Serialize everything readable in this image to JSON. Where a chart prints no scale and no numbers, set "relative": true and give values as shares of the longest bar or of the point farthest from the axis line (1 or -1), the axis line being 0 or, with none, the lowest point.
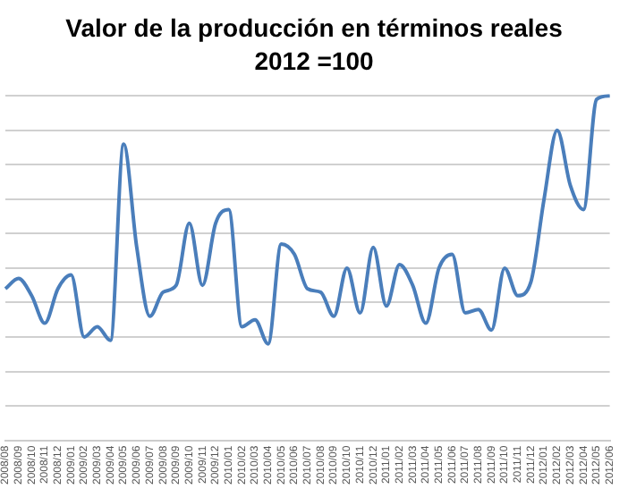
{
  "chart_data": {
    "type": "line",
    "title": "Valor de la producción en términos reales",
    "subtitle": "2012 =100",
    "relative": true,
    "grid": "y",
    "marker": "none",
    "line_style": "solid",
    "categories": [
      "2008/08",
      "2008/09",
      "2008/10",
      "2008/11",
      "2008/12",
      "2009/01",
      "2009/02",
      "2009/03",
      "2009/04",
      "2009/05",
      "2009/06",
      "2009/07",
      "2009/08",
      "2009/09",
      "2009/10",
      "2009/11",
      "2009/12",
      "2010/01",
      "2010/02",
      "2010/03",
      "2010/04",
      "2010/05",
      "2010/06",
      "2010/07",
      "2010/08",
      "2010/09",
      "2010/10",
      "2010/11",
      "2010/12",
      "2011/01",
      "2011/02",
      "2011/03",
      "2011/04",
      "2011/05",
      "2011/06",
      "2011/07",
      "2011/08",
      "2011/09",
      "2011/10",
      "2011/11",
      "2011/12",
      "2012/01",
      "2012/02",
      "2012/03",
      "2012/04",
      "2012/05",
      "2012/06"
    ],
    "series": [
      {
        "color": "#4a7ebb",
        "values": [
          0.44,
          0.47,
          0.42,
          0.34,
          0.44,
          0.48,
          0.3,
          0.33,
          0.29,
          0.86,
          0.56,
          0.36,
          0.43,
          0.45,
          0.63,
          0.45,
          0.63,
          0.67,
          0.33,
          0.35,
          0.28,
          0.57,
          0.54,
          0.44,
          0.43,
          0.36,
          0.5,
          0.37,
          0.56,
          0.39,
          0.51,
          0.45,
          0.34,
          0.5,
          0.54,
          0.37,
          0.38,
          0.32,
          0.5,
          0.42,
          0.46,
          0.7,
          0.9,
          0.74,
          0.67,
          0.99,
          1
        ]
      }
    ]
  }
}
